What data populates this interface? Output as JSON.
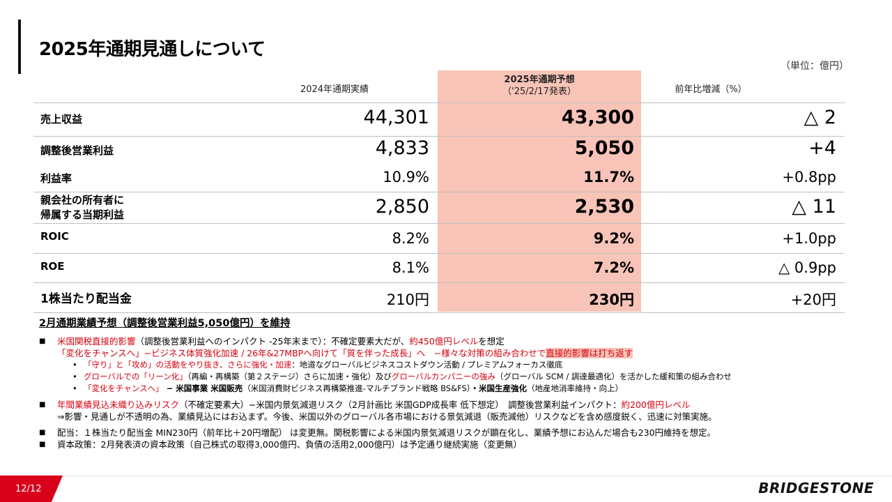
{
  "title": "2025年通期見通しについて",
  "unit": "（単位：億円）",
  "headers": {
    "col1": "2024年通期実績",
    "col2_main": "2025年通期予想",
    "col2_sub": "（'25/2/17発表）",
    "col3": "前年比増減（%）"
  },
  "rows": [
    {
      "label": "売上収益",
      "v2024": "44,301",
      "v2025": "43,300",
      "change": "△ 2"
    },
    {
      "label": "調整後営業利益",
      "v2024": "4,833",
      "v2025": "5,050",
      "change": "+4"
    },
    {
      "label": "利益率",
      "v2024": "10.9%",
      "v2025": "11.7%",
      "change": "+0.8pp"
    },
    {
      "label_line1": "親会社の所有者に",
      "label_line2": "帰属する当期利益",
      "v2024": "2,850",
      "v2025": "2,530",
      "change": "△ 11"
    },
    {
      "label": "ROIC",
      "v2024": "8.2%",
      "v2025": "9.2%",
      "change": "+1.0pp"
    },
    {
      "label": "ROE",
      "v2024": "8.1%",
      "v2025": "7.2%",
      "change": "△ 0.9pp"
    },
    {
      "label": "1株当たり配当金",
      "v2024": "210円",
      "v2025": "230円",
      "change": "+20円"
    }
  ],
  "notes": {
    "heading": "2月通期業績予想（調整後営業利益5,050億円）を維持",
    "b1_red": "米国関税直接的影響",
    "b1_text": "（調整後営業利益へのインパクト -25年末まで）：不確定要素大だが、",
    "b1_red2": "約450億円レベル",
    "b1_text2": "を想定",
    "b1_line2_red": "「変化をチャンスへ」−ビジネス体質強化加速 / 26年&27MBPへ向けて「質を伴った成長」へ　−様々な対策の組み合わせで",
    "b1_line2_hl": "直接的影響は打ち返す",
    "s1_red": "「守り」と「攻め」の活動をやり抜き、さらに強化・加速",
    "s1_text": "：地道なグローバルビジネスコストダウン活動 / プレミアムフォーカス徹底",
    "s2_red": "グローバルでの「リーン化」",
    "s2_text": "（再編・再構築（第２ステージ）さらに加速・強化）及び",
    "s2_red2": "グローバルカンパニーの強み",
    "s2_text2": "（グローバル SCM / 調達最適化）を活かした緩和策の組み合わせ",
    "s3_red": "「変化をチャンスへ」",
    "s3_text": " − 米国事業 米国販売",
    "s3_text2": "（米国消費財ビジネス再構築推進-マルチブランド戦略 BS&FS）",
    "s3_text3": "・米国生産強化",
    "s3_text4": "（地産地消率維持・向上）",
    "b2_red": "年間業績見込未織り込みリスク",
    "b2_text": "（不確定要素大）−米国内景気減退リスク（2月計画比 米国GDP成長率 低下想定）　調整後営業利益インパクト：",
    "b2_red2": "約200億円レベル",
    "b2_line2": "⇒影響・見通しが不透明の為、業績見込にはお込まず。今後、米国以外のグローバル各市場における景気減退（販売減他）リスクなどを含め感度鋭く、迅速に対策実施。",
    "b3": "配当：１株当たり配当金 MIN230円（前年比＋20円増配） は変更無。関税影響による米国内景気減退リスクが顕在化し、業績予想にお込んだ場合も230円維持を想定。",
    "b4": "資本政策：2月発表済の資本政策（自己株式の取得3,000億円、負債の活用2,000億円）は予定通り継続実施（変更無）"
  },
  "footer": {
    "page": "12/12",
    "logo": "BRIDGESTONE"
  },
  "colors": {
    "accent": "#d9001b",
    "highlight": "#f9c4b8",
    "red_text": "#d4000e"
  }
}
